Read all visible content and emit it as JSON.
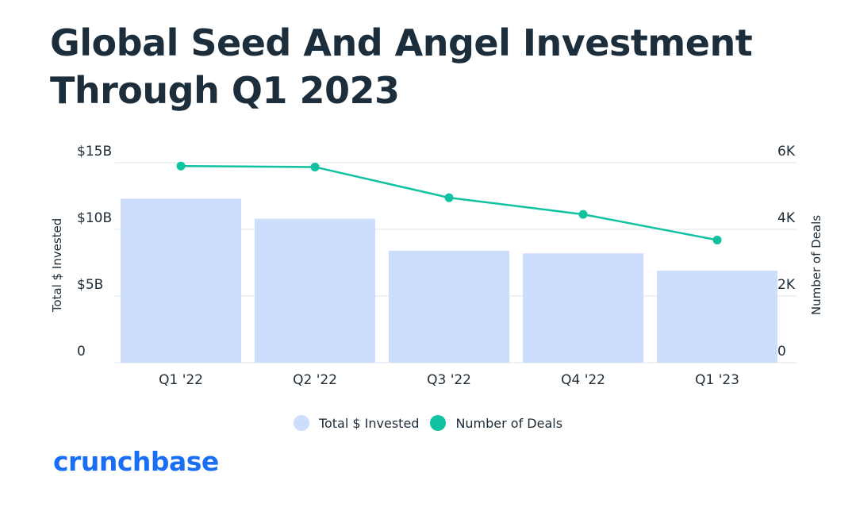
{
  "title_lines": [
    "Global Seed And Angel Investment",
    "Through Q1 2023"
  ],
  "brand": "crunchbase",
  "colors": {
    "bar": "#cdddfc",
    "line": "#10c2a0",
    "grid": "#e3e6ea",
    "text": "#1d2b36",
    "brand": "#1a6ef5"
  },
  "chart_data": {
    "type": "bar+line",
    "categories": [
      "Q1 '22",
      "Q2 '22",
      "Q3 '22",
      "Q4 '22",
      "Q1 '23"
    ],
    "series": [
      {
        "name": "Total $ Invested",
        "type": "bar",
        "axis": "left",
        "values": [
          12.3,
          10.8,
          8.4,
          8.2,
          6.9
        ]
      },
      {
        "name": "Number of Deals",
        "type": "line",
        "axis": "right",
        "values": [
          5900,
          5870,
          4950,
          4450,
          3680
        ]
      }
    ],
    "y_left": {
      "label": "Total $ Invested",
      "range": [
        0,
        15
      ],
      "ticks": [
        "0",
        "$5B",
        "$10B",
        "$15B"
      ],
      "tick_values": [
        0,
        5,
        10,
        15
      ]
    },
    "y_right": {
      "label": "Number of Deals",
      "range": [
        0,
        6000
      ],
      "ticks": [
        "0",
        "2K",
        "4K",
        "6K"
      ],
      "tick_values": [
        0,
        2000,
        4000,
        6000
      ]
    },
    "grid": true,
    "legend": {
      "position": "bottom",
      "items": [
        "Total $ Invested",
        "Number of Deals"
      ]
    }
  }
}
